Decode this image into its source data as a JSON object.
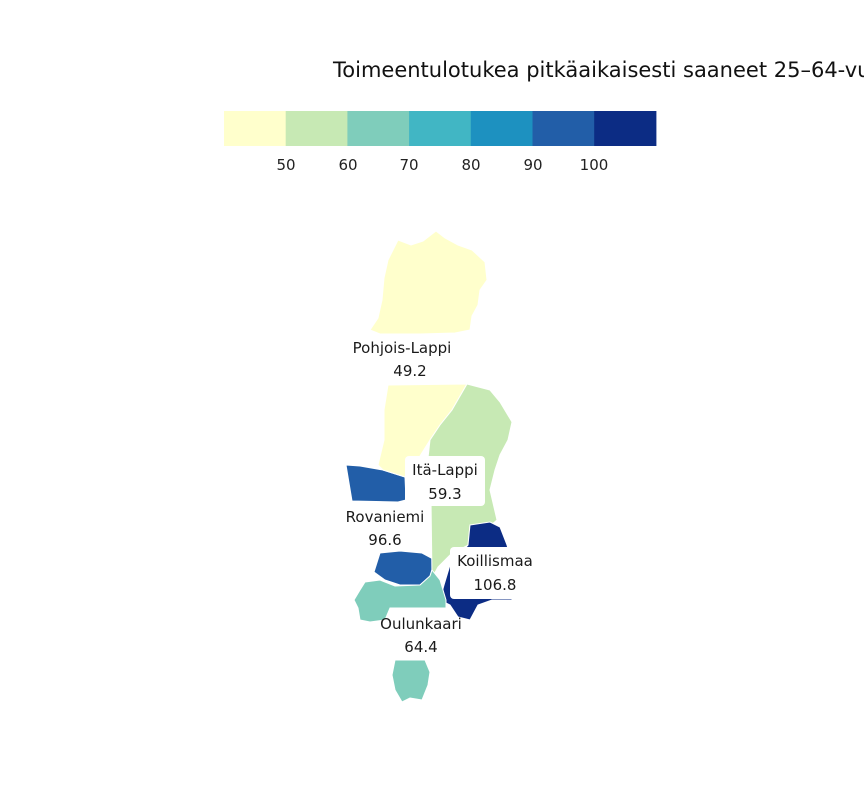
{
  "chart_data": {
    "type": "choropleth",
    "title": "Toimeentulotukea pitkäaikaisesti saaneet 25–64-vu",
    "legend": {
      "placement": "top",
      "ticks": [
        "50",
        "60",
        "70",
        "80",
        "90",
        "100"
      ],
      "colors": [
        "#ffffcc",
        "#c7e9b4",
        "#7fcdbb",
        "#41b6c4",
        "#1d91c0",
        "#225ea8",
        "#0c2c84"
      ]
    },
    "regions": [
      {
        "name": "Pohjois-Lappi",
        "value_label": "49.2",
        "value": 49.2,
        "color": "#ffffcc"
      },
      {
        "name": "Itä-Lappi",
        "value_label": "59.3",
        "value": 59.3,
        "color": "#c7e9b4"
      },
      {
        "name": "Rovaniemi",
        "value_label": "96.6",
        "value": 96.6,
        "color": "#225ea8"
      },
      {
        "name": "Koillismaa",
        "value_label": "106.8",
        "value": 106.8,
        "color": "#0c2c84"
      },
      {
        "name": "Oulunkaari",
        "value_label": "64.4",
        "value": 64.4,
        "color": "#7fcdbb"
      }
    ]
  }
}
